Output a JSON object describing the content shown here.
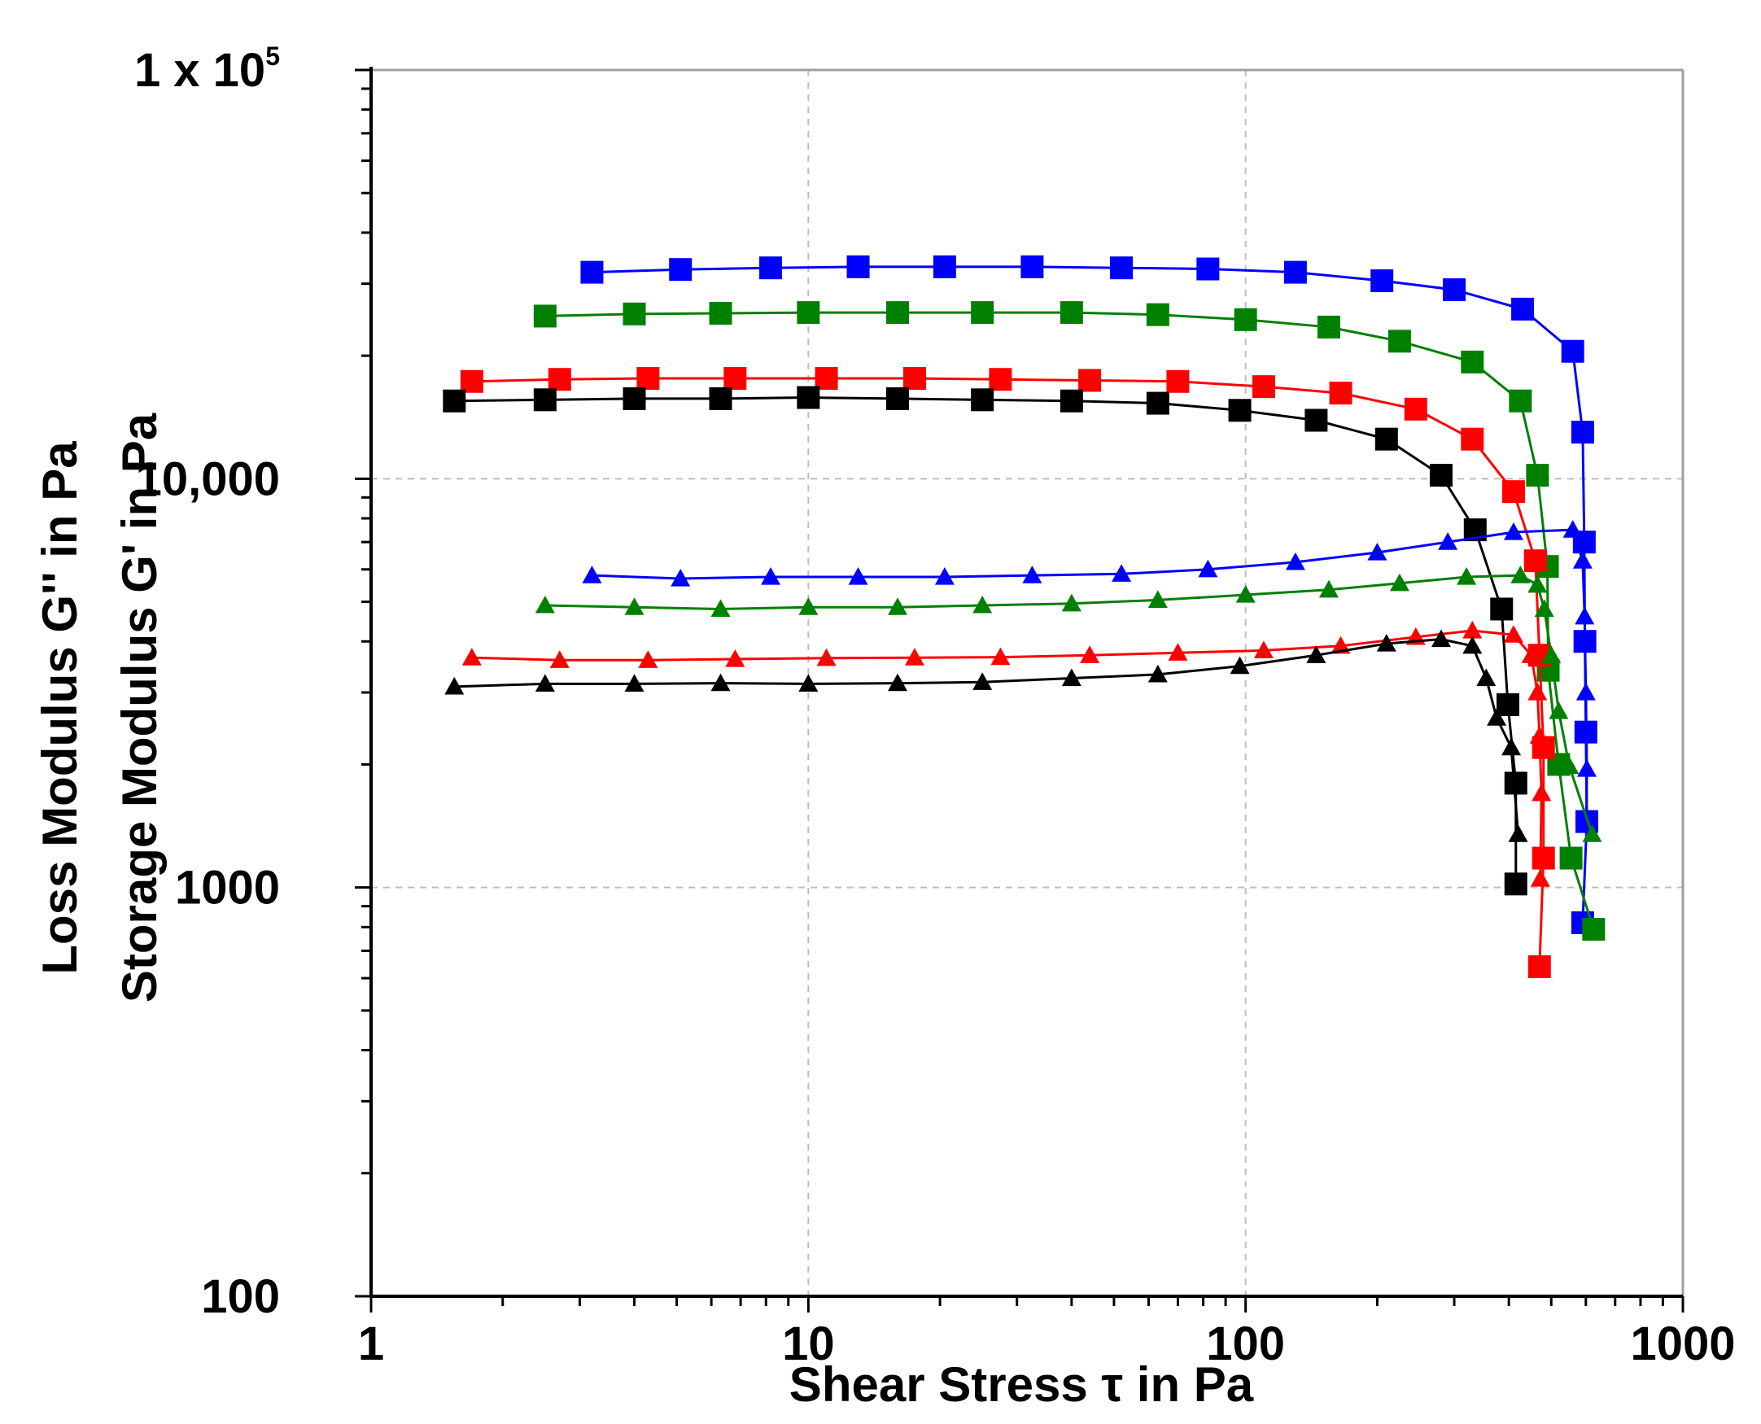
{
  "chart_data": {
    "type": "scatter",
    "xscale": "log",
    "yscale": "log",
    "xlim": [
      1,
      1000
    ],
    "ylim": [
      100,
      100000
    ],
    "xlabel": "Shear Stress τ in Pa",
    "ylabel_lines": [
      "Loss Modulus G'' in Pa",
      "Storage Modulus G' in Pa"
    ],
    "x_ticks": [
      {
        "value": 1,
        "label": "1"
      },
      {
        "value": 10,
        "label": "10"
      },
      {
        "value": 100,
        "label": "100"
      },
      {
        "value": 1000,
        "label": "1000"
      }
    ],
    "y_ticks": [
      {
        "value": 100,
        "label": "100"
      },
      {
        "value": 1000,
        "label": "1000"
      },
      {
        "value": 10000,
        "label": "10,000"
      }
    ],
    "y_top_label": {
      "value": 100000,
      "base": "1 x 10",
      "exponent": "5"
    },
    "grid": true,
    "series": [
      {
        "name": "Storage modulus G' (blue)",
        "color": "#0000ff",
        "marker": "square",
        "points": [
          [
            3.2,
            32000
          ],
          [
            5.1,
            32500
          ],
          [
            8.2,
            32800
          ],
          [
            13,
            33000
          ],
          [
            20.5,
            33000
          ],
          [
            32.5,
            33000
          ],
          [
            52,
            32800
          ],
          [
            82,
            32600
          ],
          [
            130,
            32000
          ],
          [
            205,
            30500
          ],
          [
            300,
            29000
          ],
          [
            430,
            26000
          ],
          [
            560,
            20500
          ],
          [
            590,
            13000
          ],
          [
            595,
            7000
          ],
          [
            597,
            4000
          ],
          [
            600,
            2400
          ],
          [
            603,
            1450
          ],
          [
            590,
            820
          ]
        ]
      },
      {
        "name": "Storage modulus G' (green)",
        "color": "#008000",
        "marker": "square",
        "points": [
          [
            2.5,
            25000
          ],
          [
            4,
            25300
          ],
          [
            6.3,
            25400
          ],
          [
            10,
            25500
          ],
          [
            16,
            25500
          ],
          [
            25,
            25500
          ],
          [
            40,
            25500
          ],
          [
            63,
            25200
          ],
          [
            100,
            24500
          ],
          [
            155,
            23500
          ],
          [
            225,
            21700
          ],
          [
            330,
            19300
          ],
          [
            425,
            15500
          ],
          [
            465,
            10200
          ],
          [
            490,
            6100
          ],
          [
            492,
            3400
          ],
          [
            520,
            2000
          ],
          [
            555,
            1180
          ],
          [
            625,
            790
          ]
        ]
      },
      {
        "name": "Storage modulus G' (red)",
        "color": "#ff0000",
        "marker": "square",
        "points": [
          [
            1.7,
            17300
          ],
          [
            2.7,
            17500
          ],
          [
            4.3,
            17600
          ],
          [
            6.8,
            17600
          ],
          [
            11,
            17600
          ],
          [
            17.5,
            17600
          ],
          [
            27.5,
            17500
          ],
          [
            44,
            17400
          ],
          [
            70,
            17300
          ],
          [
            110,
            16800
          ],
          [
            165,
            16200
          ],
          [
            245,
            14800
          ],
          [
            330,
            12500
          ],
          [
            410,
            9300
          ],
          [
            460,
            6300
          ],
          [
            470,
            3700
          ],
          [
            480,
            2200
          ],
          [
            480,
            1180
          ],
          [
            470,
            640
          ]
        ]
      },
      {
        "name": "Storage modulus G' (black)",
        "color": "#000000",
        "marker": "square",
        "points": [
          [
            1.55,
            15500
          ],
          [
            2.5,
            15600
          ],
          [
            4,
            15700
          ],
          [
            6.3,
            15700
          ],
          [
            10,
            15800
          ],
          [
            16,
            15700
          ],
          [
            25,
            15600
          ],
          [
            40,
            15500
          ],
          [
            63,
            15300
          ],
          [
            97,
            14700
          ],
          [
            145,
            13900
          ],
          [
            210,
            12500
          ],
          [
            280,
            10200
          ],
          [
            335,
            7500
          ],
          [
            385,
            4800
          ],
          [
            398,
            2800
          ],
          [
            415,
            1800
          ],
          [
            415,
            1020
          ]
        ]
      },
      {
        "name": "Loss modulus G'' (blue)",
        "color": "#0000ff",
        "marker": "triangle",
        "points": [
          [
            3.2,
            5800
          ],
          [
            5.1,
            5700
          ],
          [
            8.2,
            5750
          ],
          [
            13,
            5750
          ],
          [
            20.5,
            5750
          ],
          [
            32.5,
            5800
          ],
          [
            52,
            5850
          ],
          [
            82,
            6000
          ],
          [
            130,
            6250
          ],
          [
            200,
            6600
          ],
          [
            290,
            7000
          ],
          [
            410,
            7400
          ],
          [
            560,
            7500
          ],
          [
            590,
            6300
          ],
          [
            596,
            4600
          ],
          [
            600,
            3000
          ],
          [
            603,
            1950
          ],
          [
            602,
            1450
          ]
        ]
      },
      {
        "name": "Loss modulus G'' (green)",
        "color": "#008000",
        "marker": "triangle",
        "points": [
          [
            2.5,
            4900
          ],
          [
            4,
            4850
          ],
          [
            6.3,
            4800
          ],
          [
            10,
            4850
          ],
          [
            16,
            4850
          ],
          [
            25,
            4900
          ],
          [
            40,
            4950
          ],
          [
            63,
            5050
          ],
          [
            100,
            5200
          ],
          [
            155,
            5350
          ],
          [
            225,
            5550
          ],
          [
            320,
            5750
          ],
          [
            425,
            5800
          ],
          [
            465,
            5500
          ],
          [
            482,
            4800
          ],
          [
            500,
            3700
          ],
          [
            520,
            2700
          ],
          [
            550,
            1980
          ],
          [
            620,
            1350
          ]
        ]
      },
      {
        "name": "Loss modulus G'' (red)",
        "color": "#ff0000",
        "marker": "triangle",
        "points": [
          [
            1.7,
            3650
          ],
          [
            2.7,
            3600
          ],
          [
            4.3,
            3600
          ],
          [
            6.8,
            3620
          ],
          [
            11,
            3640
          ],
          [
            17.5,
            3650
          ],
          [
            27.5,
            3660
          ],
          [
            44,
            3700
          ],
          [
            70,
            3750
          ],
          [
            110,
            3800
          ],
          [
            165,
            3900
          ],
          [
            245,
            4100
          ],
          [
            330,
            4250
          ],
          [
            410,
            4150
          ],
          [
            450,
            3700
          ],
          [
            465,
            3000
          ],
          [
            470,
            2350
          ],
          [
            475,
            1700
          ],
          [
            472,
            1050
          ]
        ]
      },
      {
        "name": "Loss modulus G'' (black)",
        "color": "#000000",
        "marker": "triangle",
        "points": [
          [
            1.55,
            3100
          ],
          [
            2.5,
            3150
          ],
          [
            4,
            3150
          ],
          [
            6.3,
            3160
          ],
          [
            10,
            3150
          ],
          [
            16,
            3160
          ],
          [
            25,
            3180
          ],
          [
            40,
            3250
          ],
          [
            63,
            3320
          ],
          [
            97,
            3480
          ],
          [
            145,
            3700
          ],
          [
            210,
            3950
          ],
          [
            280,
            4050
          ],
          [
            330,
            3900
          ],
          [
            355,
            3250
          ],
          [
            375,
            2600
          ],
          [
            405,
            2200
          ],
          [
            420,
            1350
          ]
        ]
      }
    ]
  }
}
